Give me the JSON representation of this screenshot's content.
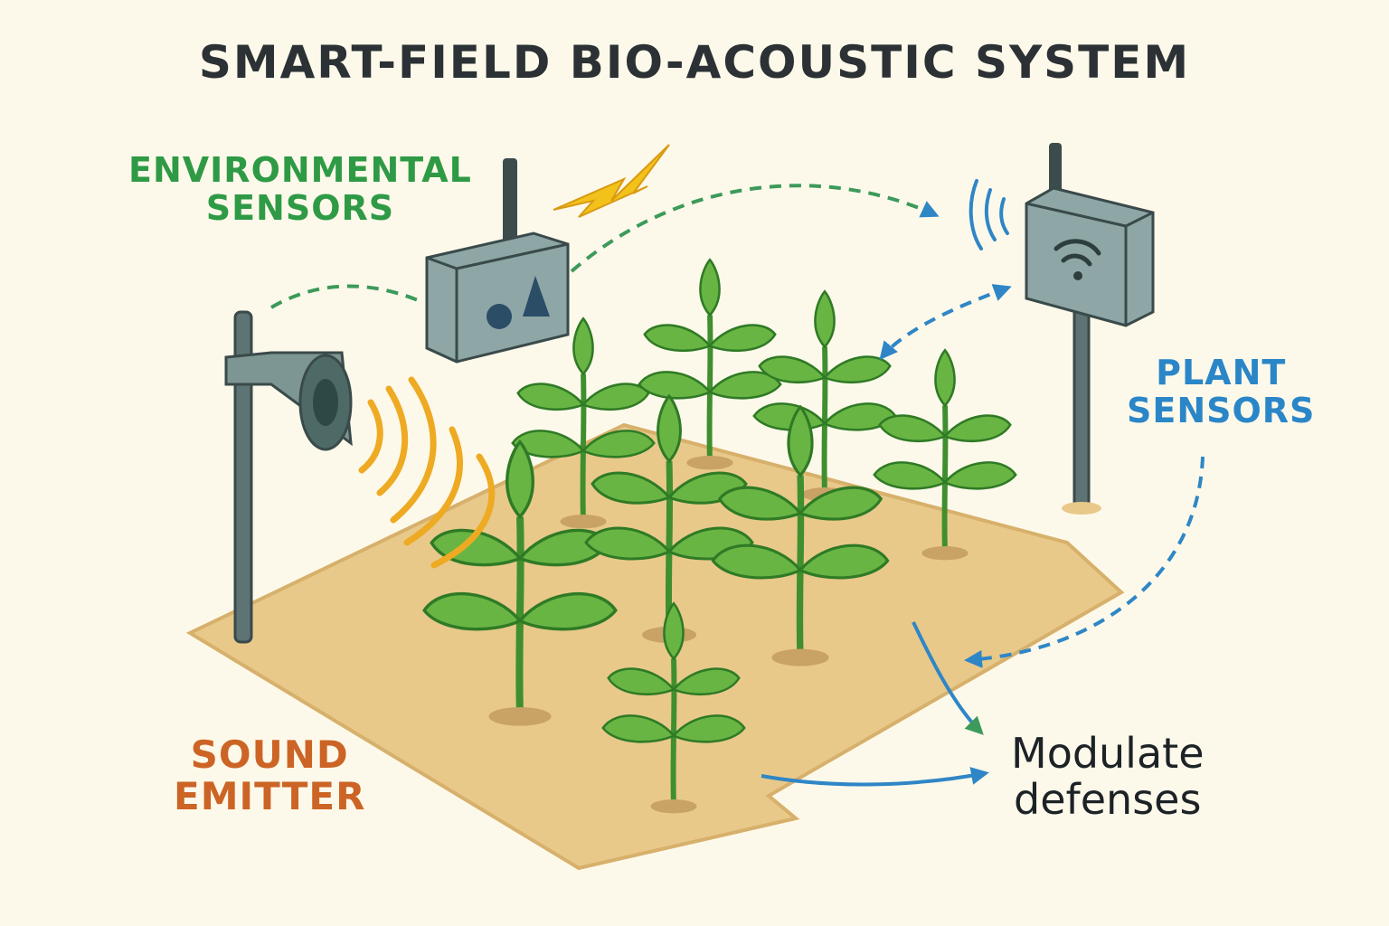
{
  "title": "SMART-FIELD BIO-ACOUSTIC SYSTEM",
  "labels": {
    "environmental": [
      "ENVIRONMENTAL",
      "SENSORS"
    ],
    "plant": [
      "PLANT",
      "SENSORS"
    ],
    "sound": [
      "SOUND",
      "EMITTER"
    ],
    "modulate": [
      "Modulate",
      "defenses"
    ]
  },
  "colors": {
    "environmental": "#2f9a45",
    "plant": "#2b86c8",
    "sound": "#cc6425",
    "signal_waves": "#eeaa22",
    "lightning": "#f2c21a",
    "leaf": "#69b544",
    "soil": "#e8c98a",
    "arrow_blue": "#2f86c6",
    "arrow_green": "#3c9a5a"
  },
  "icons": {
    "environment_box": "sensor-box-icon",
    "plant_box": "wifi-sensor-icon",
    "speaker": "speaker-icon",
    "lightning": "lightning-icon"
  }
}
